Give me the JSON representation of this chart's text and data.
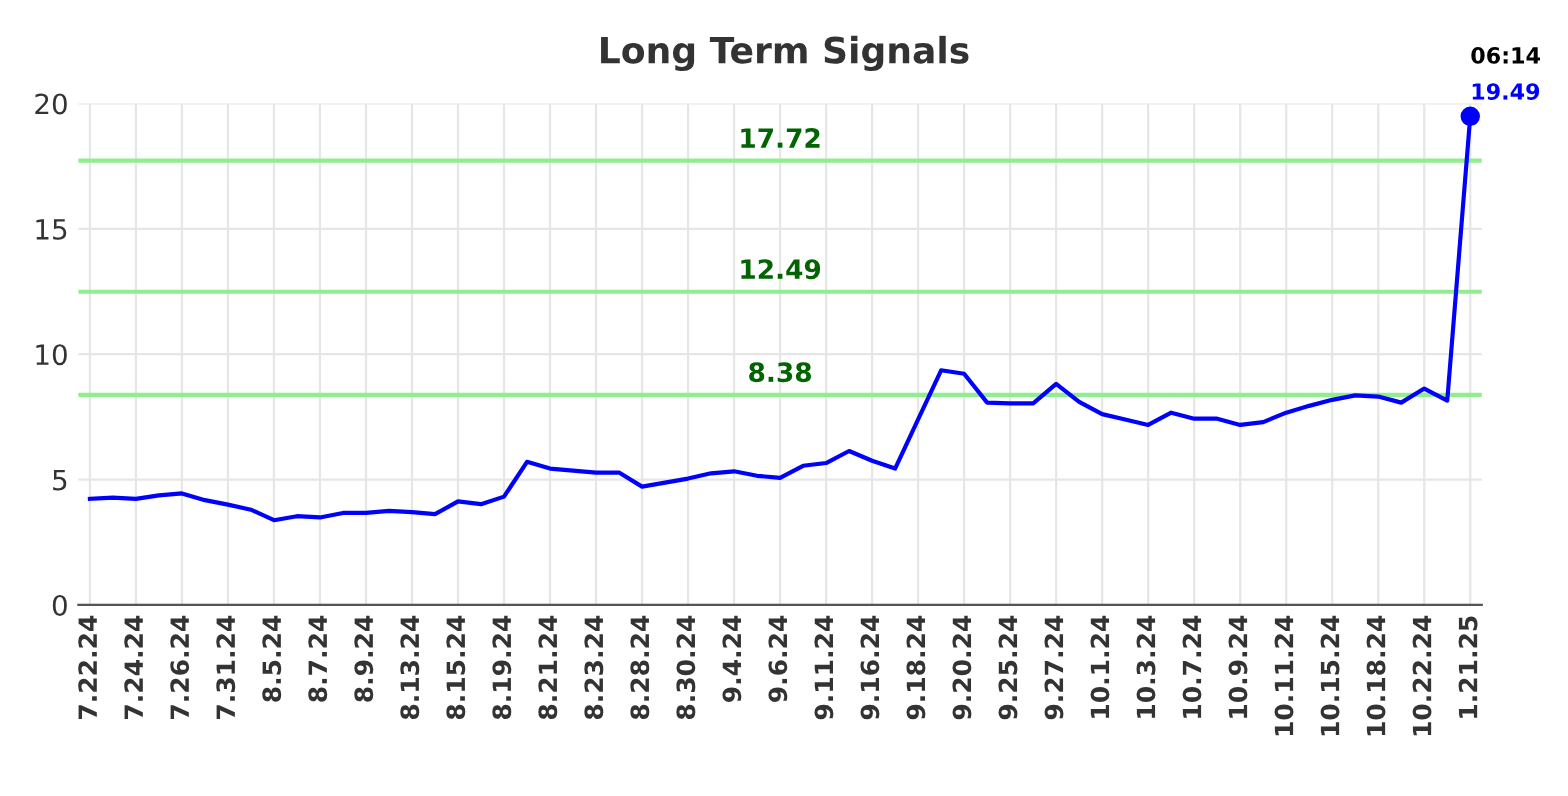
{
  "chart_data": {
    "type": "line",
    "title": "Long Term Signals",
    "categories": [
      "7.22.24",
      null,
      "7.24.24",
      null,
      "7.26.24",
      null,
      "7.31.24",
      null,
      "8.5.24",
      null,
      "8.7.24",
      null,
      "8.9.24",
      null,
      "8.13.24",
      null,
      "8.15.24",
      null,
      "8.19.24",
      null,
      "8.21.24",
      null,
      "8.23.24",
      null,
      "8.28.24",
      null,
      "8.30.24",
      null,
      "9.4.24",
      null,
      "9.6.24",
      null,
      "9.11.24",
      null,
      "9.16.24",
      null,
      "9.18.24",
      null,
      "9.20.24",
      null,
      "9.25.24",
      null,
      "9.27.24",
      null,
      "10.1.24",
      null,
      "10.3.24",
      null,
      "10.7.24",
      null,
      "10.9.24",
      null,
      "10.11.24",
      null,
      "10.15.24",
      null,
      "10.18.24",
      null,
      "10.22.24",
      null,
      "1.21.25"
    ],
    "series": [
      {
        "color": "#0000ff",
        "values": [
          4.23,
          4.28,
          4.23,
          4.37,
          4.45,
          4.18,
          4.0,
          3.8,
          3.38,
          3.54,
          3.49,
          3.67,
          3.67,
          3.75,
          3.7,
          3.62,
          4.13,
          4.02,
          4.32,
          5.71,
          5.44,
          5.36,
          5.28,
          5.28,
          4.72,
          4.88,
          5.04,
          5.25,
          5.33,
          5.15,
          5.07,
          5.55,
          5.66,
          6.14,
          5.75,
          5.44,
          7.4,
          9.36,
          9.22,
          8.07,
          8.04,
          8.04,
          8.82,
          8.1,
          7.61,
          7.4,
          7.18,
          7.67,
          7.43,
          7.43,
          7.18,
          7.29,
          7.67,
          7.94,
          8.18,
          8.36,
          8.31,
          8.07,
          8.63,
          8.15,
          19.49
        ]
      },
      {
        "type": "scatter",
        "color": "#0000ff",
        "x": [
          "1.21.25"
        ],
        "values": [
          19.49
        ]
      }
    ],
    "ref_lines": [
      {
        "axis": "y",
        "value": 17.72,
        "label": "17.72",
        "color": "#90ee90"
      },
      {
        "axis": "y",
        "value": 12.49,
        "label": "12.49",
        "color": "#90ee90"
      },
      {
        "axis": "y",
        "value": 8.38,
        "label": "8.38",
        "color": "#90ee90"
      }
    ],
    "annotations": [
      {
        "text": "19.49",
        "x": "1.21.25",
        "y": 19.49
      },
      {
        "text": "06:14",
        "x": "1.21.25",
        "y": 19.49
      }
    ],
    "ylim": [
      0,
      20
    ],
    "yticks": [
      0,
      5,
      10,
      15,
      20
    ],
    "grid": true,
    "legend": false
  }
}
